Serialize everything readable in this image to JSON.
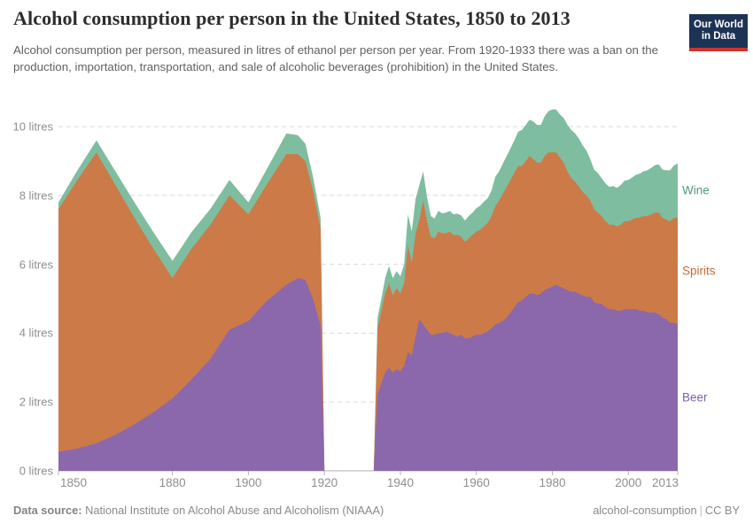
{
  "header": {
    "title": "Alcohol consumption per person in the United States, 1850 to 2013",
    "subtitle": "Alcohol consumption per person, measured in litres of ethanol per person per year. From 1920-1933 there was a ban on the production, importation, transportation, and sale of alcoholic beverages (prohibition) in the United States.",
    "logo_line1": "Our World",
    "logo_line2": "in Data"
  },
  "footer": {
    "source_label": "Data source:",
    "source_text": "National Institute on Alcohol Abuse and Alcoholism (NIAAA)",
    "right_text": "alcohol-consumption",
    "license_text": "CC BY"
  },
  "colors": {
    "beer_fill": "#8a68ab",
    "spirits_fill": "#cd7a49",
    "wine_fill": "#7fbda0",
    "beer_label": "#7d62a8",
    "spirits_label": "#c96a39",
    "wine_label": "#51997b",
    "gridline": "#d9d9d9",
    "baseline": "#b3b3b3",
    "logo_bg": "#1d3356",
    "logo_red": "#cf342b"
  },
  "chart_data": {
    "type": "area",
    "stacked": true,
    "title": "Alcohol consumption per person in the United States, 1850 to 2013",
    "unit": "litres",
    "xlabel": "",
    "ylabel": "litres of ethanol per person per year",
    "ylim": [
      0,
      10
    ],
    "grid": "dashed horizontal",
    "legend_position": "right-edge inline labels",
    "yticks": [
      {
        "value": 0,
        "label": "0 litres"
      },
      {
        "value": 2,
        "label": "2 litres"
      },
      {
        "value": 4,
        "label": "4 litres"
      },
      {
        "value": 6,
        "label": "6 litres"
      },
      {
        "value": 8,
        "label": "8 litres"
      },
      {
        "value": 10,
        "label": "10 litres"
      }
    ],
    "xticks": [
      {
        "value": 1850,
        "label": "1850"
      },
      {
        "value": 1880,
        "label": "1880"
      },
      {
        "value": 1900,
        "label": "1900"
      },
      {
        "value": 1920,
        "label": "1920"
      },
      {
        "value": 1940,
        "label": "1940"
      },
      {
        "value": 1960,
        "label": "1960"
      },
      {
        "value": 1980,
        "label": "1980"
      },
      {
        "value": 2000,
        "label": "2000"
      },
      {
        "value": 2013,
        "label": "2013"
      }
    ],
    "series": [
      {
        "name": "Beer"
      },
      {
        "name": "Spirits"
      },
      {
        "name": "Wine"
      }
    ],
    "note": "Values are 0 during prohibition (1920-1933).",
    "points_format": [
      "year",
      "beer",
      "spirits",
      "wine"
    ],
    "points": [
      [
        1850,
        0.55,
        7.05,
        0.2
      ],
      [
        1855,
        0.65,
        7.8,
        0.28
      ],
      [
        1860,
        0.8,
        8.45,
        0.35
      ],
      [
        1865,
        1.05,
        7.25,
        0.4
      ],
      [
        1870,
        1.35,
        6.0,
        0.45
      ],
      [
        1875,
        1.7,
        4.75,
        0.48
      ],
      [
        1880,
        2.1,
        3.5,
        0.5
      ],
      [
        1885,
        2.65,
        3.8,
        0.48
      ],
      [
        1890,
        3.25,
        3.9,
        0.46
      ],
      [
        1895,
        4.1,
        3.9,
        0.45
      ],
      [
        1900,
        4.35,
        3.1,
        0.35
      ],
      [
        1905,
        4.95,
        3.4,
        0.45
      ],
      [
        1910,
        5.4,
        3.8,
        0.6
      ],
      [
        1913,
        5.6,
        3.6,
        0.55
      ],
      [
        1915,
        5.55,
        3.45,
        0.5
      ],
      [
        1917,
        5.0,
        3.15,
        0.4
      ],
      [
        1919,
        4.2,
        2.85,
        0.3
      ],
      [
        1920,
        0,
        0,
        0
      ],
      [
        1933,
        0,
        0,
        0
      ],
      [
        1934,
        2.2,
        1.95,
        0.3
      ],
      [
        1935,
        2.55,
        2.1,
        0.35
      ],
      [
        1936,
        2.85,
        2.3,
        0.45
      ],
      [
        1937,
        3.0,
        2.45,
        0.5
      ],
      [
        1938,
        2.85,
        2.25,
        0.5
      ],
      [
        1939,
        2.95,
        2.35,
        0.5
      ],
      [
        1940,
        2.9,
        2.25,
        0.5
      ],
      [
        1941,
        3.05,
        2.4,
        0.55
      ],
      [
        1942,
        3.45,
        3.1,
        0.9
      ],
      [
        1943,
        3.35,
        2.7,
        0.9
      ],
      [
        1944,
        3.9,
        3.0,
        1.0
      ],
      [
        1945,
        4.4,
        2.9,
        1.0
      ],
      [
        1946,
        4.25,
        3.6,
        0.85
      ],
      [
        1947,
        4.1,
        3.15,
        0.7
      ],
      [
        1948,
        3.95,
        2.85,
        0.6
      ],
      [
        1949,
        3.95,
        2.8,
        0.58
      ],
      [
        1950,
        4.0,
        2.95,
        0.6
      ],
      [
        1951,
        4.0,
        2.9,
        0.58
      ],
      [
        1952,
        4.05,
        2.85,
        0.6
      ],
      [
        1953,
        4.0,
        2.95,
        0.6
      ],
      [
        1954,
        3.95,
        2.9,
        0.6
      ],
      [
        1955,
        3.9,
        2.95,
        0.62
      ],
      [
        1956,
        3.95,
        2.85,
        0.62
      ],
      [
        1957,
        3.85,
        2.8,
        0.62
      ],
      [
        1958,
        3.85,
        2.9,
        0.65
      ],
      [
        1959,
        3.9,
        2.95,
        0.65
      ],
      [
        1960,
        3.95,
        3.0,
        0.68
      ],
      [
        1961,
        3.95,
        3.05,
        0.7
      ],
      [
        1962,
        4.0,
        3.1,
        0.72
      ],
      [
        1963,
        4.05,
        3.15,
        0.72
      ],
      [
        1964,
        4.15,
        3.25,
        0.75
      ],
      [
        1965,
        4.25,
        3.45,
        0.85
      ],
      [
        1966,
        4.3,
        3.55,
        0.85
      ],
      [
        1967,
        4.35,
        3.7,
        0.88
      ],
      [
        1968,
        4.45,
        3.8,
        0.9
      ],
      [
        1969,
        4.6,
        3.85,
        0.92
      ],
      [
        1970,
        4.75,
        3.9,
        0.95
      ],
      [
        1971,
        4.9,
        3.95,
        1.0
      ],
      [
        1972,
        4.95,
        3.9,
        1.05
      ],
      [
        1973,
        5.05,
        3.95,
        1.05
      ],
      [
        1974,
        5.15,
        4.0,
        1.05
      ],
      [
        1975,
        5.15,
        3.9,
        1.1
      ],
      [
        1976,
        5.1,
        3.85,
        1.1
      ],
      [
        1977,
        5.15,
        3.8,
        1.1
      ],
      [
        1978,
        5.25,
        3.9,
        1.15
      ],
      [
        1979,
        5.3,
        3.95,
        1.2
      ],
      [
        1980,
        5.35,
        3.9,
        1.25
      ],
      [
        1981,
        5.4,
        3.85,
        1.25
      ],
      [
        1982,
        5.35,
        3.75,
        1.25
      ],
      [
        1983,
        5.3,
        3.65,
        1.3
      ],
      [
        1984,
        5.25,
        3.45,
        1.35
      ],
      [
        1985,
        5.2,
        3.3,
        1.4
      ],
      [
        1986,
        5.2,
        3.2,
        1.4
      ],
      [
        1987,
        5.15,
        3.1,
        1.4
      ],
      [
        1988,
        5.1,
        3.0,
        1.35
      ],
      [
        1989,
        5.05,
        2.95,
        1.3
      ],
      [
        1990,
        5.05,
        2.8,
        1.2
      ],
      [
        1991,
        4.9,
        2.7,
        1.15
      ],
      [
        1992,
        4.85,
        2.65,
        1.15
      ],
      [
        1993,
        4.85,
        2.55,
        1.1
      ],
      [
        1994,
        4.75,
        2.5,
        1.1
      ],
      [
        1995,
        4.7,
        2.45,
        1.1
      ],
      [
        1996,
        4.7,
        2.45,
        1.12
      ],
      [
        1997,
        4.65,
        2.45,
        1.12
      ],
      [
        1998,
        4.65,
        2.5,
        1.15
      ],
      [
        1999,
        4.7,
        2.55,
        1.18
      ],
      [
        2000,
        4.7,
        2.55,
        1.2
      ],
      [
        2001,
        4.7,
        2.6,
        1.22
      ],
      [
        2002,
        4.7,
        2.65,
        1.25
      ],
      [
        2003,
        4.65,
        2.7,
        1.28
      ],
      [
        2004,
        4.65,
        2.75,
        1.3
      ],
      [
        2005,
        4.6,
        2.8,
        1.33
      ],
      [
        2006,
        4.6,
        2.85,
        1.35
      ],
      [
        2007,
        4.6,
        2.9,
        1.38
      ],
      [
        2008,
        4.55,
        2.95,
        1.4
      ],
      [
        2009,
        4.45,
        2.9,
        1.4
      ],
      [
        2010,
        4.4,
        2.9,
        1.43
      ],
      [
        2011,
        4.3,
        2.95,
        1.48
      ],
      [
        2012,
        4.3,
        3.05,
        1.52
      ],
      [
        2013,
        4.25,
        3.1,
        1.58
      ]
    ]
  }
}
